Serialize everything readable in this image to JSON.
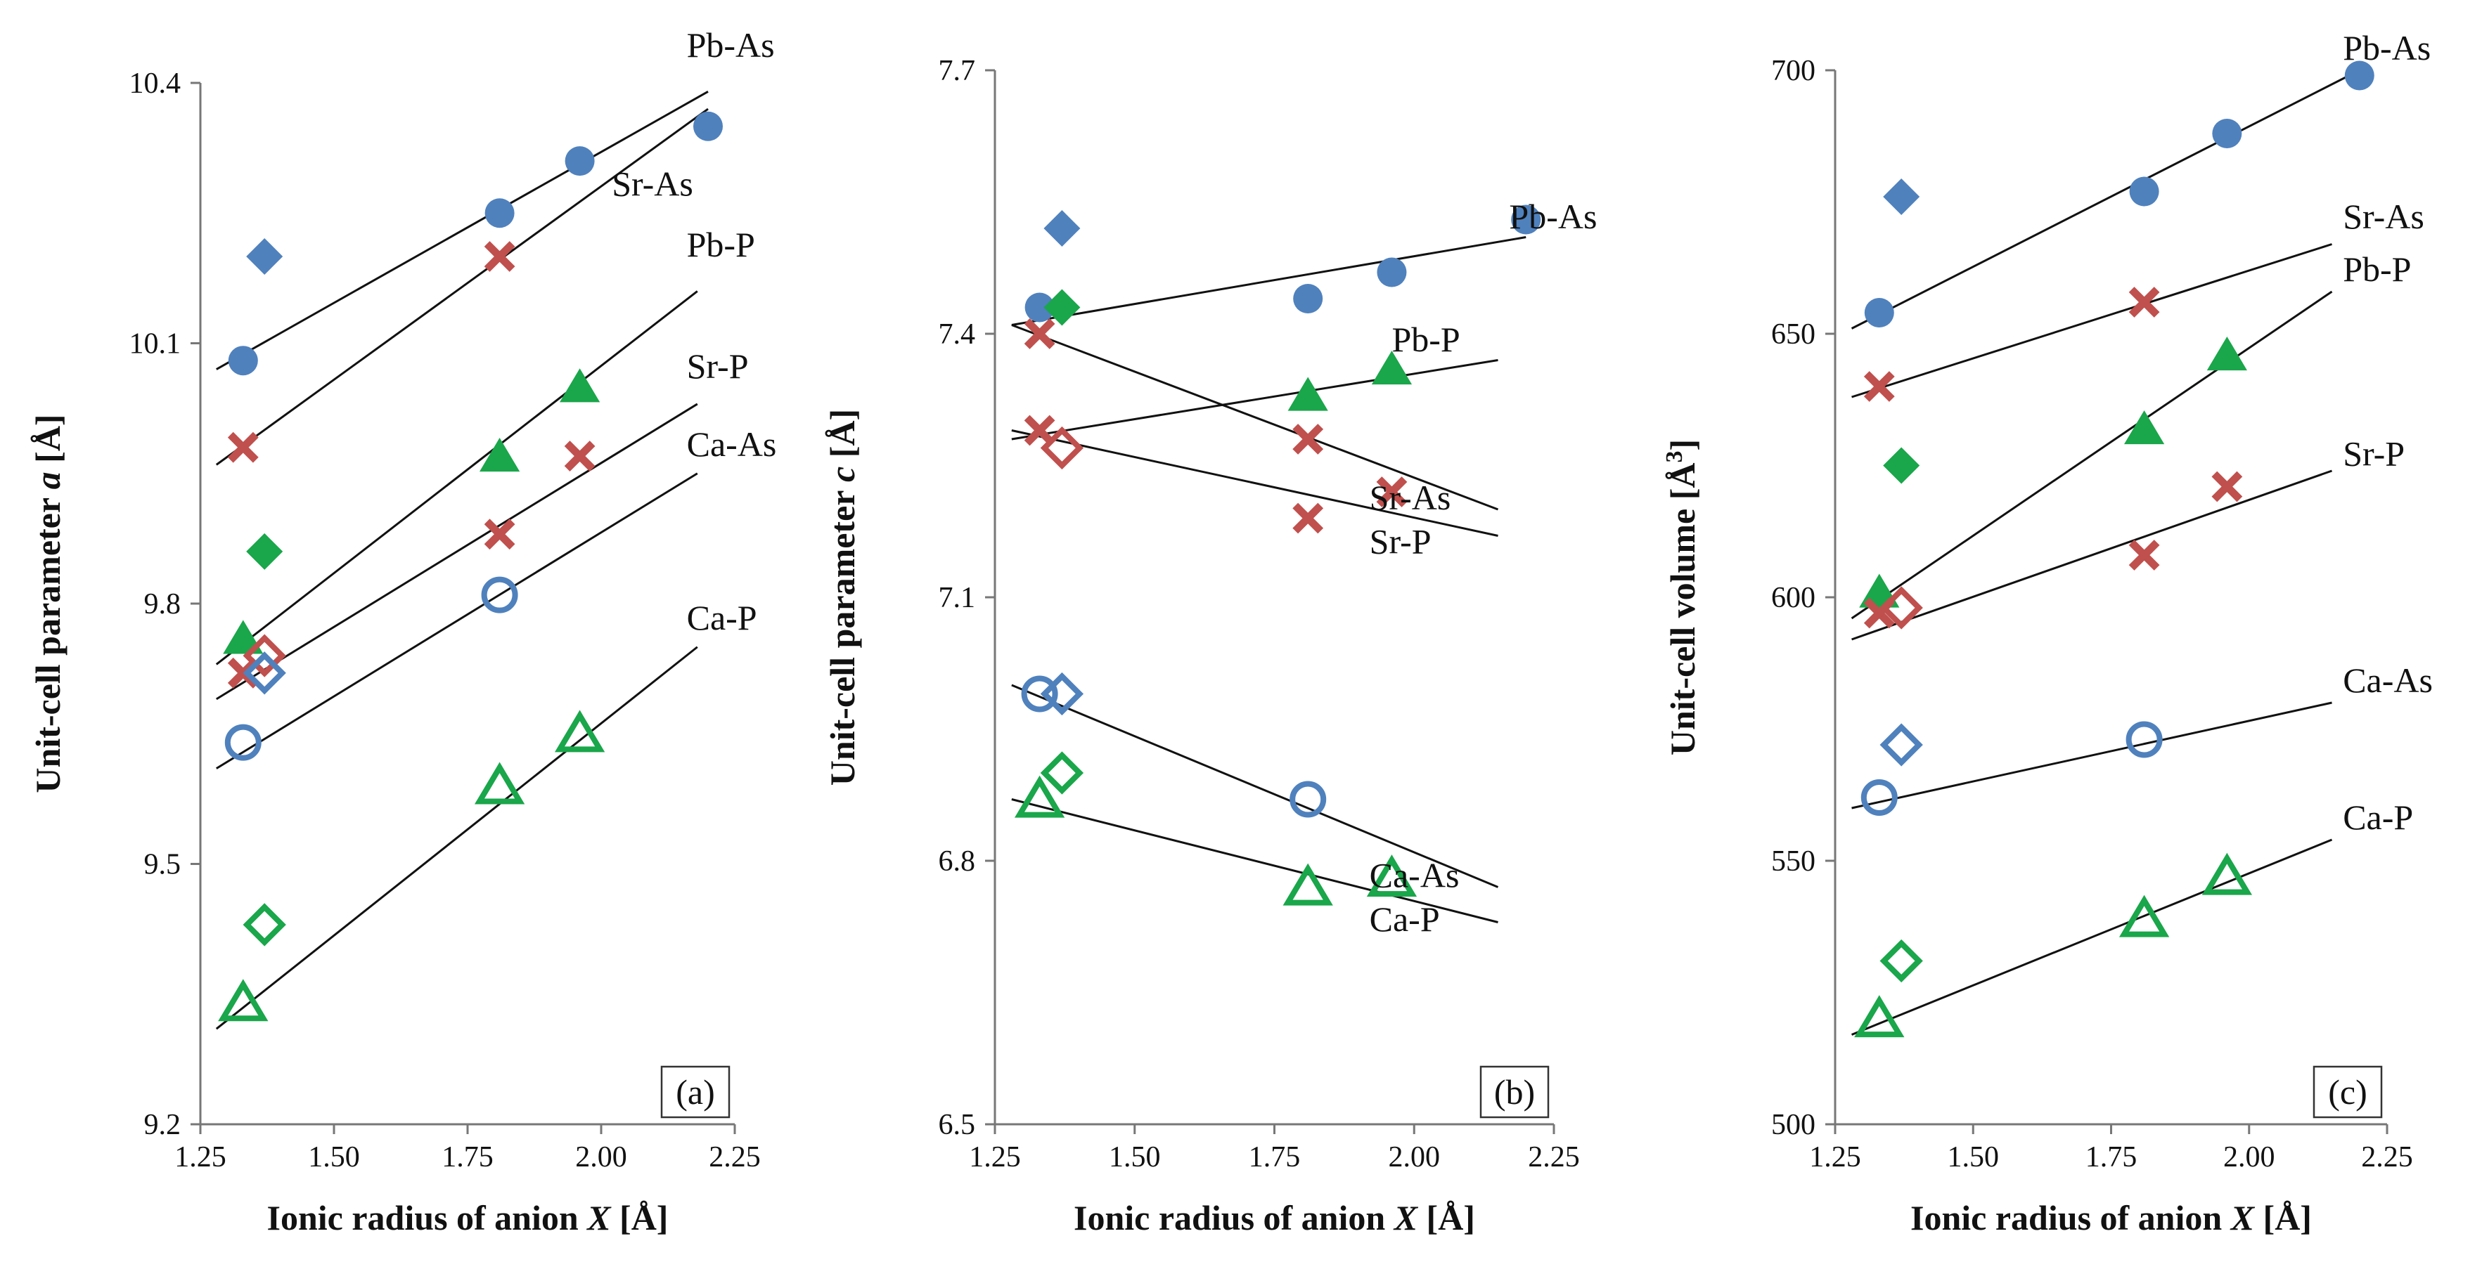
{
  "chart_data": [
    {
      "type": "scatter",
      "panel_label": "(a)",
      "title": "",
      "xlabel": "Ionic radius of anion X [Å]",
      "ylabel_parts": [
        "Unit-cell parameter ",
        "a",
        " [Å]"
      ],
      "xlim": [
        1.25,
        2.25
      ],
      "ylim": [
        9.2,
        10.4
      ],
      "x_ticks": [
        "1.25",
        "1.50",
        "1.75",
        "2.00",
        "2.25"
      ],
      "y_ticks": [
        "9.2",
        "9.5",
        "9.8",
        "10.1",
        "10.4"
      ],
      "grid": false,
      "series": [
        {
          "name": "Pb-As",
          "marker": "circle",
          "filled": true,
          "color": "#4f81bd",
          "x": [
            1.33,
            1.81,
            1.96,
            2.2
          ],
          "y": [
            10.08,
            10.25,
            10.31,
            10.35
          ]
        },
        {
          "name": "Sr-As",
          "marker": "x",
          "filled": true,
          "color": "#c0504d",
          "x": [
            1.33,
            1.81
          ],
          "y": [
            9.98,
            10.2
          ]
        },
        {
          "name": "Pb-P",
          "marker": "triangle",
          "filled": true,
          "color": "#1aa64a",
          "x": [
            1.33,
            1.81,
            1.96
          ],
          "y": [
            9.76,
            9.97,
            10.05
          ]
        },
        {
          "name": "Sr-P",
          "marker": "x",
          "filled": true,
          "color": "#c0504d",
          "x": [
            1.33,
            1.81,
            1.96
          ],
          "y": [
            9.72,
            9.88,
            9.97
          ]
        },
        {
          "name": "Ca-As",
          "marker": "circle",
          "filled": false,
          "color": "#4f81bd",
          "x": [
            1.33,
            1.81
          ],
          "y": [
            9.64,
            9.81
          ]
        },
        {
          "name": "Ca-P",
          "marker": "triangle",
          "filled": false,
          "color": "#1aa64a",
          "x": [
            1.33,
            1.81,
            1.96
          ],
          "y": [
            9.34,
            9.59,
            9.65
          ]
        },
        {
          "name": "Pb-As (diamond)",
          "marker": "diamond",
          "filled": true,
          "color": "#4f81bd",
          "x": [
            1.37
          ],
          "y": [
            10.2
          ]
        },
        {
          "name": "Pb-P (diamond)",
          "marker": "diamond",
          "filled": true,
          "color": "#1aa64a",
          "x": [
            1.37
          ],
          "y": [
            9.86
          ]
        },
        {
          "name": "Sr-P (diamond)",
          "marker": "diamond",
          "filled": false,
          "color": "#c0504d",
          "x": [
            1.37
          ],
          "y": [
            9.74
          ]
        },
        {
          "name": "Ca-As (diamond)",
          "marker": "diamond",
          "filled": false,
          "color": "#4f81bd",
          "x": [
            1.37
          ],
          "y": [
            9.72
          ]
        },
        {
          "name": "Ca-P (diamond)",
          "marker": "diamond",
          "filled": false,
          "color": "#1aa64a",
          "x": [
            1.37
          ],
          "y": [
            9.43
          ]
        }
      ],
      "trend_lines": [
        {
          "name": "Pb-As",
          "x": [
            1.28,
            2.2
          ],
          "y": [
            10.07,
            10.39
          ]
        },
        {
          "name": "Sr-As",
          "x": [
            1.28,
            2.2
          ],
          "y": [
            9.96,
            10.37
          ]
        },
        {
          "name": "Pb-P",
          "x": [
            1.28,
            2.18
          ],
          "y": [
            9.73,
            10.16
          ]
        },
        {
          "name": "Sr-P",
          "x": [
            1.28,
            2.18
          ],
          "y": [
            9.69,
            10.03
          ]
        },
        {
          "name": "Ca-As",
          "x": [
            1.28,
            2.18
          ],
          "y": [
            9.61,
            9.95
          ]
        },
        {
          "name": "Ca-P",
          "x": [
            1.28,
            2.18
          ],
          "y": [
            9.31,
            9.75
          ]
        }
      ],
      "line_labels": [
        {
          "text": "Pb-As",
          "x": 2.16,
          "y": 10.43
        },
        {
          "text": "Sr-As",
          "x": 2.02,
          "y": 10.27
        },
        {
          "text": "Pb-P",
          "x": 2.16,
          "y": 10.2
        },
        {
          "text": "Sr-P",
          "x": 2.16,
          "y": 10.06
        },
        {
          "text": "Ca-As",
          "x": 2.16,
          "y": 9.97
        },
        {
          "text": "Ca-P",
          "x": 2.16,
          "y": 9.77
        }
      ]
    },
    {
      "type": "scatter",
      "panel_label": "(b)",
      "title": "",
      "xlabel": "Ionic radius of anion X [Å]",
      "ylabel_parts": [
        "Unit-cell parameter ",
        "c",
        " [Å]"
      ],
      "xlim": [
        1.25,
        2.25
      ],
      "ylim": [
        6.5,
        7.7
      ],
      "x_ticks": [
        "1.25",
        "1.50",
        "1.75",
        "2.00",
        "2.25"
      ],
      "y_ticks": [
        "6.5",
        "6.8",
        "7.1",
        "7.4",
        "7.7"
      ],
      "grid": false,
      "series": [
        {
          "name": "Pb-As",
          "marker": "circle",
          "filled": true,
          "color": "#4f81bd",
          "x": [
            1.33,
            1.81,
            1.96,
            2.2
          ],
          "y": [
            7.43,
            7.44,
            7.47,
            7.53
          ]
        },
        {
          "name": "Pb-P",
          "marker": "triangle",
          "filled": true,
          "color": "#1aa64a",
          "x": [
            1.81,
            1.96
          ],
          "y": [
            7.33,
            7.36
          ]
        },
        {
          "name": "Sr-As",
          "marker": "x",
          "filled": true,
          "color": "#c0504d",
          "x": [
            1.33
          ],
          "y": [
            7.4
          ]
        },
        {
          "name": "Sr-P",
          "marker": "x",
          "filled": true,
          "color": "#c0504d",
          "x": [
            1.33,
            1.81,
            1.96
          ],
          "y": [
            7.29,
            7.28,
            7.22
          ]
        },
        {
          "name": "Sr-P (2)",
          "marker": "x",
          "filled": true,
          "color": "#c0504d",
          "x": [
            1.81
          ],
          "y": [
            7.19
          ]
        },
        {
          "name": "Ca-As",
          "marker": "circle",
          "filled": false,
          "color": "#4f81bd",
          "x": [
            1.33,
            1.81
          ],
          "y": [
            6.99,
            6.87
          ]
        },
        {
          "name": "Ca-P",
          "marker": "triangle",
          "filled": false,
          "color": "#1aa64a",
          "x": [
            1.33,
            1.81,
            1.96
          ],
          "y": [
            6.87,
            6.77,
            6.78
          ]
        },
        {
          "name": "Pb-As (diamond)",
          "marker": "diamond",
          "filled": true,
          "color": "#4f81bd",
          "x": [
            1.37
          ],
          "y": [
            7.52
          ]
        },
        {
          "name": "Pb-P (diamond)",
          "marker": "diamond",
          "filled": true,
          "color": "#1aa64a",
          "x": [
            1.37
          ],
          "y": [
            7.43
          ]
        },
        {
          "name": "Sr-P (diamond)",
          "marker": "diamond",
          "filled": false,
          "color": "#c0504d",
          "x": [
            1.37
          ],
          "y": [
            7.27
          ]
        },
        {
          "name": "Ca-As (diamond)",
          "marker": "diamond",
          "filled": false,
          "color": "#4f81bd",
          "x": [
            1.37
          ],
          "y": [
            6.99
          ]
        },
        {
          "name": "Ca-P (diamond)",
          "marker": "diamond",
          "filled": false,
          "color": "#1aa64a",
          "x": [
            1.37
          ],
          "y": [
            6.9
          ]
        }
      ],
      "trend_lines": [
        {
          "name": "Pb-As",
          "x": [
            1.28,
            2.2
          ],
          "y": [
            7.41,
            7.51
          ]
        },
        {
          "name": "Sr-As",
          "x": [
            1.28,
            2.15
          ],
          "y": [
            7.41,
            7.2
          ]
        },
        {
          "name": "Pb-P",
          "x": [
            1.28,
            2.15
          ],
          "y": [
            7.28,
            7.37
          ]
        },
        {
          "name": "Sr-P",
          "x": [
            1.28,
            2.15
          ],
          "y": [
            7.29,
            7.17
          ]
        },
        {
          "name": "Ca-As",
          "x": [
            1.28,
            2.15
          ],
          "y": [
            7.0,
            6.77
          ]
        },
        {
          "name": "Ca-P",
          "x": [
            1.28,
            2.15
          ],
          "y": [
            6.87,
            6.73
          ]
        }
      ],
      "line_labels": [
        {
          "text": "Pb-As",
          "x": 2.17,
          "y": 7.52
        },
        {
          "text": "Pb-P",
          "x": 1.96,
          "y": 7.38
        },
        {
          "text": "Sr-As",
          "x": 1.92,
          "y": 7.2
        },
        {
          "text": "Sr-P",
          "x": 1.92,
          "y": 7.15
        },
        {
          "text": "Ca-As",
          "x": 1.92,
          "y": 6.77
        },
        {
          "text": "Ca-P",
          "x": 1.92,
          "y": 6.72
        }
      ]
    },
    {
      "type": "scatter",
      "panel_label": "(c)",
      "title": "",
      "xlabel": "Ionic radius of anion X [Å]",
      "ylabel_parts": [
        "Unit-cell volume [Å",
        "3",
        "]"
      ],
      "xlim": [
        1.25,
        2.25
      ],
      "ylim": [
        500,
        700
      ],
      "x_ticks": [
        "1.25",
        "1.50",
        "1.75",
        "2.00",
        "2.25"
      ],
      "y_ticks": [
        "500",
        "550",
        "600",
        "650",
        "700"
      ],
      "grid": false,
      "series": [
        {
          "name": "Pb-As",
          "marker": "circle",
          "filled": true,
          "color": "#4f81bd",
          "x": [
            1.33,
            1.81,
            1.96,
            2.2
          ],
          "y": [
            654,
            677,
            688,
            699
          ]
        },
        {
          "name": "Sr-As",
          "marker": "x",
          "filled": true,
          "color": "#c0504d",
          "x": [
            1.33,
            1.81
          ],
          "y": [
            640,
            656
          ]
        },
        {
          "name": "Pb-P",
          "marker": "triangle",
          "filled": true,
          "color": "#1aa64a",
          "x": [
            1.33,
            1.81,
            1.96
          ],
          "y": [
            601,
            632,
            646
          ]
        },
        {
          "name": "Sr-P",
          "marker": "x",
          "filled": true,
          "color": "#c0504d",
          "x": [
            1.33,
            1.81,
            1.96
          ],
          "y": [
            597,
            608,
            621
          ]
        },
        {
          "name": "Ca-As",
          "marker": "circle",
          "filled": false,
          "color": "#4f81bd",
          "x": [
            1.33,
            1.81
          ],
          "y": [
            562,
            573
          ]
        },
        {
          "name": "Ca-P",
          "marker": "triangle",
          "filled": false,
          "color": "#1aa64a",
          "x": [
            1.33,
            1.81,
            1.96
          ],
          "y": [
            520,
            539,
            547
          ]
        },
        {
          "name": "Pb-As (diamond)",
          "marker": "diamond",
          "filled": true,
          "color": "#4f81bd",
          "x": [
            1.37
          ],
          "y": [
            676
          ]
        },
        {
          "name": "Pb-P (diamond)",
          "marker": "diamond",
          "filled": true,
          "color": "#1aa64a",
          "x": [
            1.37
          ],
          "y": [
            625
          ]
        },
        {
          "name": "Sr-P (diamond)",
          "marker": "diamond",
          "filled": false,
          "color": "#c0504d",
          "x": [
            1.37
          ],
          "y": [
            598
          ]
        },
        {
          "name": "Ca-As (diamond)",
          "marker": "diamond",
          "filled": false,
          "color": "#4f81bd",
          "x": [
            1.37
          ],
          "y": [
            572
          ]
        },
        {
          "name": "Ca-P (diamond)",
          "marker": "diamond",
          "filled": false,
          "color": "#1aa64a",
          "x": [
            1.37
          ],
          "y": [
            531
          ]
        }
      ],
      "trend_lines": [
        {
          "name": "Pb-As",
          "x": [
            1.28,
            2.2
          ],
          "y": [
            651,
            700
          ]
        },
        {
          "name": "Sr-As",
          "x": [
            1.28,
            2.15
          ],
          "y": [
            638,
            667
          ]
        },
        {
          "name": "Pb-P",
          "x": [
            1.28,
            2.15
          ],
          "y": [
            596,
            658
          ]
        },
        {
          "name": "Sr-P",
          "x": [
            1.28,
            2.15
          ],
          "y": [
            592,
            624
          ]
        },
        {
          "name": "Ca-As",
          "x": [
            1.28,
            2.15
          ],
          "y": [
            560,
            580
          ]
        },
        {
          "name": "Ca-P",
          "x": [
            1.28,
            2.15
          ],
          "y": [
            517,
            554
          ]
        }
      ],
      "line_labels": [
        {
          "text": "Pb-As",
          "x": 2.17,
          "y": 702
        },
        {
          "text": "Sr-As",
          "x": 2.17,
          "y": 670
        },
        {
          "text": "Pb-P",
          "x": 2.17,
          "y": 660
        },
        {
          "text": "Sr-P",
          "x": 2.17,
          "y": 625
        },
        {
          "text": "Ca-As",
          "x": 2.17,
          "y": 582
        },
        {
          "text": "Ca-P",
          "x": 2.17,
          "y": 556
        }
      ]
    }
  ]
}
